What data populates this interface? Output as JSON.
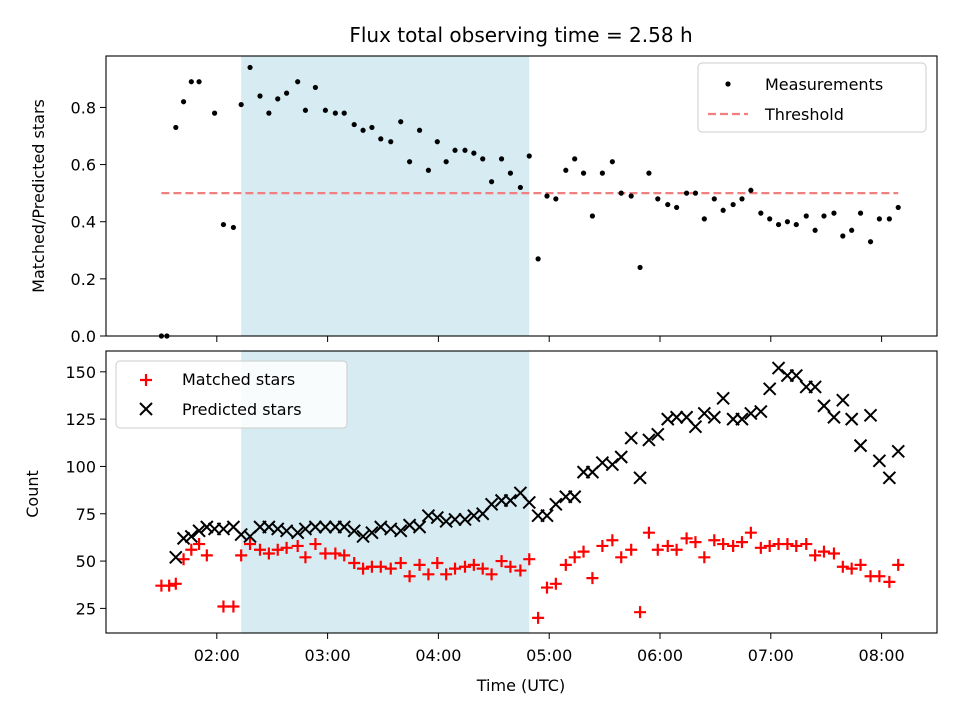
{
  "chart_data": {
    "type": "scatter",
    "title": "Flux total observing time = 2.58 h",
    "xlabel": "Time (UTC)",
    "x_ticks": [
      "02:00",
      "03:00",
      "04:00",
      "05:00",
      "06:00",
      "07:00",
      "08:00"
    ],
    "x_ticks_hours": [
      2,
      3,
      4,
      5,
      6,
      7,
      8
    ],
    "xlim_hours": [
      1.0,
      8.5
    ],
    "shaded_span_hours": [
      2.22,
      4.82
    ],
    "shaded_color": "#add8e6",
    "top": {
      "ylabel": "Matched/Predicted stars",
      "ylim": [
        0,
        0.98
      ],
      "y_ticks": [
        0.0,
        0.2,
        0.4,
        0.6,
        0.8
      ],
      "y_tick_labels": [
        "0.0",
        "0.2",
        "0.4",
        "0.6",
        "0.8"
      ],
      "legend": {
        "placement": "top-right",
        "measurements_label": "Measurements",
        "threshold_label": "Threshold"
      },
      "threshold": {
        "value": 0.5,
        "x_range_hours": [
          1.5,
          8.15
        ],
        "color": "#f08080"
      },
      "measurements": [
        [
          1.5,
          0.0
        ],
        [
          1.55,
          0.0
        ],
        [
          1.63,
          0.73
        ],
        [
          1.7,
          0.82
        ],
        [
          1.77,
          0.89
        ],
        [
          1.84,
          0.89
        ],
        [
          1.98,
          0.78
        ],
        [
          2.06,
          0.39
        ],
        [
          2.15,
          0.38
        ],
        [
          2.22,
          0.81
        ],
        [
          2.3,
          0.94
        ],
        [
          2.39,
          0.84
        ],
        [
          2.47,
          0.78
        ],
        [
          2.55,
          0.83
        ],
        [
          2.63,
          0.85
        ],
        [
          2.73,
          0.89
        ],
        [
          2.8,
          0.79
        ],
        [
          2.89,
          0.87
        ],
        [
          2.98,
          0.79
        ],
        [
          3.07,
          0.78
        ],
        [
          3.15,
          0.78
        ],
        [
          3.24,
          0.74
        ],
        [
          3.32,
          0.72
        ],
        [
          3.4,
          0.73
        ],
        [
          3.48,
          0.69
        ],
        [
          3.57,
          0.68
        ],
        [
          3.66,
          0.75
        ],
        [
          3.74,
          0.61
        ],
        [
          3.83,
          0.72
        ],
        [
          3.91,
          0.58
        ],
        [
          3.99,
          0.68
        ],
        [
          4.07,
          0.61
        ],
        [
          4.15,
          0.65
        ],
        [
          4.24,
          0.65
        ],
        [
          4.32,
          0.64
        ],
        [
          4.4,
          0.62
        ],
        [
          4.48,
          0.54
        ],
        [
          4.57,
          0.62
        ],
        [
          4.65,
          0.57
        ],
        [
          4.74,
          0.52
        ],
        [
          4.82,
          0.63
        ],
        [
          4.9,
          0.27
        ],
        [
          4.98,
          0.49
        ],
        [
          5.06,
          0.48
        ],
        [
          5.15,
          0.58
        ],
        [
          5.23,
          0.62
        ],
        [
          5.31,
          0.57
        ],
        [
          5.39,
          0.42
        ],
        [
          5.48,
          0.57
        ],
        [
          5.57,
          0.61
        ],
        [
          5.65,
          0.5
        ],
        [
          5.74,
          0.49
        ],
        [
          5.82,
          0.24
        ],
        [
          5.9,
          0.57
        ],
        [
          5.98,
          0.48
        ],
        [
          6.07,
          0.46
        ],
        [
          6.15,
          0.45
        ],
        [
          6.24,
          0.5
        ],
        [
          6.32,
          0.5
        ],
        [
          6.4,
          0.41
        ],
        [
          6.49,
          0.48
        ],
        [
          6.57,
          0.44
        ],
        [
          6.66,
          0.46
        ],
        [
          6.74,
          0.48
        ],
        [
          6.82,
          0.51
        ],
        [
          6.91,
          0.43
        ],
        [
          6.99,
          0.41
        ],
        [
          7.07,
          0.39
        ],
        [
          7.15,
          0.4
        ],
        [
          7.23,
          0.39
        ],
        [
          7.32,
          0.42
        ],
        [
          7.4,
          0.37
        ],
        [
          7.48,
          0.42
        ],
        [
          7.57,
          0.43
        ],
        [
          7.65,
          0.35
        ],
        [
          7.73,
          0.37
        ],
        [
          7.81,
          0.43
        ],
        [
          7.9,
          0.33
        ],
        [
          7.98,
          0.41
        ],
        [
          8.07,
          0.41
        ],
        [
          8.15,
          0.45
        ]
      ],
      "measurement_color": "#000000"
    },
    "bottom": {
      "ylabel": "Count",
      "ylim": [
        12,
        161
      ],
      "y_ticks": [
        25,
        50,
        75,
        100,
        125,
        150
      ],
      "y_tick_labels": [
        "25",
        "50",
        "75",
        "100",
        "125",
        "150"
      ],
      "legend": {
        "placement": "top-left",
        "matched_label": "Matched stars",
        "predicted_label": "Predicted stars"
      },
      "matched_color": "#ff0000",
      "predicted_color": "#000000",
      "matched": [
        [
          1.5,
          37
        ],
        [
          1.57,
          37
        ],
        [
          1.63,
          38
        ],
        [
          1.7,
          51
        ],
        [
          1.77,
          56
        ],
        [
          1.84,
          59
        ],
        [
          1.91,
          53
        ],
        [
          2.06,
          26
        ],
        [
          2.15,
          26
        ],
        [
          2.22,
          53
        ],
        [
          2.3,
          59
        ],
        [
          2.39,
          56
        ],
        [
          2.47,
          54
        ],
        [
          2.55,
          56
        ],
        [
          2.63,
          57
        ],
        [
          2.73,
          58
        ],
        [
          2.8,
          52
        ],
        [
          2.89,
          59
        ],
        [
          2.98,
          54
        ],
        [
          3.07,
          54
        ],
        [
          3.15,
          53
        ],
        [
          3.24,
          49
        ],
        [
          3.32,
          46
        ],
        [
          3.4,
          47
        ],
        [
          3.48,
          47
        ],
        [
          3.57,
          46
        ],
        [
          3.66,
          49
        ],
        [
          3.74,
          42
        ],
        [
          3.83,
          48
        ],
        [
          3.91,
          43
        ],
        [
          3.99,
          49
        ],
        [
          4.07,
          43
        ],
        [
          4.15,
          46
        ],
        [
          4.24,
          47
        ],
        [
          4.32,
          48
        ],
        [
          4.4,
          46
        ],
        [
          4.48,
          43
        ],
        [
          4.57,
          50
        ],
        [
          4.65,
          47
        ],
        [
          4.74,
          45
        ],
        [
          4.82,
          51
        ],
        [
          4.9,
          20
        ],
        [
          4.98,
          36
        ],
        [
          5.06,
          38
        ],
        [
          5.15,
          48
        ],
        [
          5.23,
          52
        ],
        [
          5.31,
          55
        ],
        [
          5.39,
          41
        ],
        [
          5.48,
          58
        ],
        [
          5.57,
          61
        ],
        [
          5.65,
          52
        ],
        [
          5.74,
          56
        ],
        [
          5.82,
          23
        ],
        [
          5.9,
          65
        ],
        [
          5.98,
          56
        ],
        [
          6.07,
          58
        ],
        [
          6.15,
          56
        ],
        [
          6.24,
          62
        ],
        [
          6.32,
          60
        ],
        [
          6.4,
          52
        ],
        [
          6.49,
          61
        ],
        [
          6.57,
          59
        ],
        [
          6.66,
          58
        ],
        [
          6.74,
          60
        ],
        [
          6.82,
          65
        ],
        [
          6.91,
          57
        ],
        [
          6.99,
          58
        ],
        [
          7.07,
          59
        ],
        [
          7.15,
          59
        ],
        [
          7.23,
          58
        ],
        [
          7.32,
          59
        ],
        [
          7.4,
          53
        ],
        [
          7.48,
          55
        ],
        [
          7.57,
          54
        ],
        [
          7.65,
          47
        ],
        [
          7.73,
          46
        ],
        [
          7.81,
          48
        ],
        [
          7.9,
          42
        ],
        [
          7.98,
          42
        ],
        [
          8.07,
          39
        ],
        [
          8.15,
          48
        ]
      ],
      "predicted": [
        [
          1.63,
          52
        ],
        [
          1.7,
          62
        ],
        [
          1.77,
          63
        ],
        [
          1.84,
          66
        ],
        [
          1.91,
          68
        ],
        [
          1.98,
          67
        ],
        [
          2.06,
          67
        ],
        [
          2.15,
          68
        ],
        [
          2.22,
          64
        ],
        [
          2.3,
          63
        ],
        [
          2.39,
          68
        ],
        [
          2.47,
          68
        ],
        [
          2.55,
          67
        ],
        [
          2.63,
          66
        ],
        [
          2.73,
          65
        ],
        [
          2.8,
          67
        ],
        [
          2.89,
          68
        ],
        [
          2.98,
          68
        ],
        [
          3.07,
          68
        ],
        [
          3.15,
          68
        ],
        [
          3.24,
          66
        ],
        [
          3.32,
          63
        ],
        [
          3.4,
          65
        ],
        [
          3.48,
          68
        ],
        [
          3.57,
          67
        ],
        [
          3.66,
          66
        ],
        [
          3.74,
          69
        ],
        [
          3.83,
          68
        ],
        [
          3.91,
          74
        ],
        [
          3.99,
          73
        ],
        [
          4.07,
          71
        ],
        [
          4.15,
          72
        ],
        [
          4.24,
          72
        ],
        [
          4.32,
          74
        ],
        [
          4.4,
          75
        ],
        [
          4.48,
          80
        ],
        [
          4.57,
          82
        ],
        [
          4.65,
          82
        ],
        [
          4.74,
          86
        ],
        [
          4.82,
          81
        ],
        [
          4.9,
          74
        ],
        [
          4.98,
          74
        ],
        [
          5.06,
          80
        ],
        [
          5.15,
          84
        ],
        [
          5.23,
          84
        ],
        [
          5.31,
          97
        ],
        [
          5.39,
          97
        ],
        [
          5.48,
          102
        ],
        [
          5.57,
          101
        ],
        [
          5.65,
          105
        ],
        [
          5.74,
          115
        ],
        [
          5.82,
          94
        ],
        [
          5.9,
          114
        ],
        [
          5.98,
          117
        ],
        [
          6.07,
          125
        ],
        [
          6.15,
          126
        ],
        [
          6.24,
          126
        ],
        [
          6.32,
          121
        ],
        [
          6.4,
          128
        ],
        [
          6.49,
          126
        ],
        [
          6.57,
          136
        ],
        [
          6.66,
          125
        ],
        [
          6.74,
          125
        ],
        [
          6.82,
          128
        ],
        [
          6.91,
          129
        ],
        [
          6.99,
          141
        ],
        [
          7.07,
          152
        ],
        [
          7.15,
          148
        ],
        [
          7.23,
          148
        ],
        [
          7.32,
          142
        ],
        [
          7.4,
          142
        ],
        [
          7.48,
          132
        ],
        [
          7.57,
          126
        ],
        [
          7.65,
          135
        ],
        [
          7.73,
          125
        ],
        [
          7.81,
          111
        ],
        [
          7.9,
          127
        ],
        [
          7.98,
          103
        ],
        [
          8.07,
          94
        ],
        [
          8.15,
          108
        ]
      ]
    }
  }
}
